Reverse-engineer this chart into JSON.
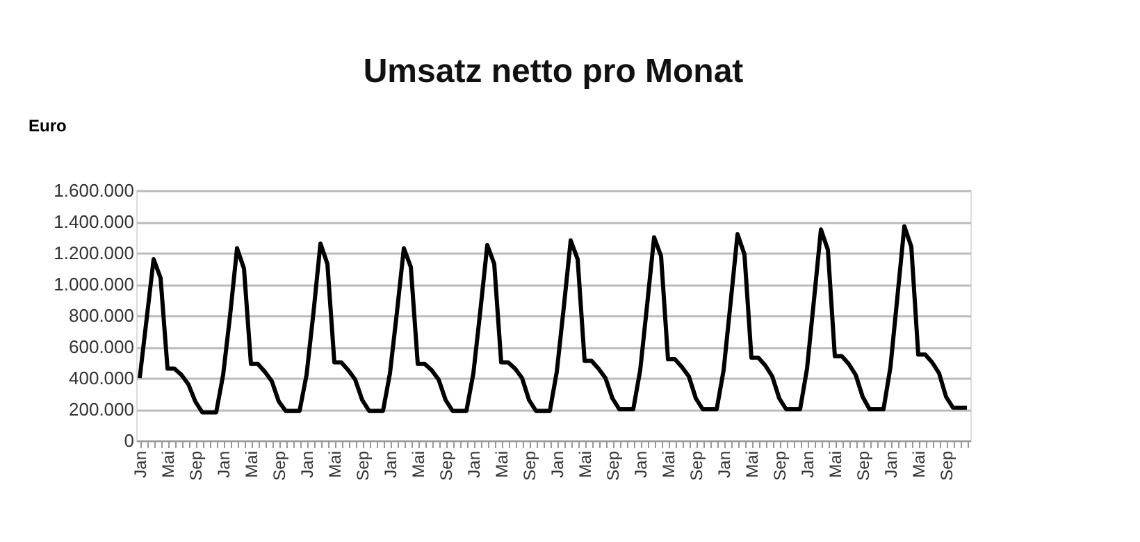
{
  "chart_data": {
    "type": "line",
    "title": "Umsatz netto pro Monat",
    "ylabel": "Euro",
    "categories": [
      "Jan",
      null,
      null,
      null,
      "Mai",
      null,
      null,
      null,
      "Sep",
      null,
      null,
      null,
      "Jan",
      null,
      null,
      null,
      "Mai",
      null,
      null,
      null,
      "Sep",
      null,
      null,
      null,
      "Jan",
      null,
      null,
      null,
      "Mai",
      null,
      null,
      null,
      "Sep",
      null,
      null,
      null,
      "Jan",
      null,
      null,
      null,
      "Mai",
      null,
      null,
      null,
      "Sep",
      null,
      null,
      null,
      "Jan",
      null,
      null,
      null,
      "Mai",
      null,
      null,
      null,
      "Sep",
      null,
      null,
      null,
      "Jan",
      null,
      null,
      null,
      "Mai",
      null,
      null,
      null,
      "Sep",
      null,
      null,
      null,
      "Jan",
      null,
      null,
      null,
      "Mai",
      null,
      null,
      null,
      "Sep",
      null,
      null,
      null,
      "Jan",
      null,
      null,
      null,
      "Mai",
      null,
      null,
      null,
      "Sep",
      null,
      null,
      null,
      "Jan",
      null,
      null,
      null,
      "Mai",
      null,
      null,
      null,
      "Sep",
      null,
      null,
      null,
      "Jan",
      null,
      null,
      null,
      "Mai",
      null,
      null,
      null,
      "Sep",
      null,
      null,
      null
    ],
    "series": [
      {
        "color": "#000000",
        "values": [
          400000,
          780000,
          1160000,
          1040000,
          460000,
          460000,
          420000,
          360000,
          250000,
          180000,
          180000,
          180000,
          420000,
          800000,
          1230000,
          1100000,
          490000,
          490000,
          440000,
          380000,
          250000,
          190000,
          190000,
          190000,
          420000,
          820000,
          1260000,
          1130000,
          500000,
          500000,
          450000,
          390000,
          260000,
          190000,
          190000,
          190000,
          430000,
          820000,
          1230000,
          1110000,
          490000,
          490000,
          450000,
          390000,
          260000,
          190000,
          190000,
          190000,
          430000,
          830000,
          1250000,
          1130000,
          500000,
          500000,
          460000,
          400000,
          260000,
          190000,
          190000,
          190000,
          440000,
          850000,
          1280000,
          1160000,
          510000,
          510000,
          460000,
          400000,
          270000,
          200000,
          200000,
          200000,
          450000,
          870000,
          1300000,
          1180000,
          520000,
          520000,
          470000,
          410000,
          270000,
          200000,
          200000,
          200000,
          450000,
          880000,
          1320000,
          1190000,
          530000,
          530000,
          480000,
          410000,
          270000,
          200000,
          200000,
          200000,
          460000,
          900000,
          1350000,
          1220000,
          540000,
          540000,
          490000,
          420000,
          280000,
          200000,
          200000,
          200000,
          470000,
          920000,
          1370000,
          1240000,
          550000,
          550000,
          500000,
          430000,
          280000,
          210000,
          210000,
          210000
        ]
      }
    ],
    "ylim": [
      0,
      1600000
    ],
    "yticks": [
      0,
      {
        "value": 200000,
        "label": "200.000"
      },
      {
        "value": 400000,
        "label": "400.000"
      },
      {
        "value": 600000,
        "label": "600.000"
      },
      {
        "value": 800000,
        "label": "800.000"
      },
      {
        "value": 1000000,
        "label": "1.000.000"
      },
      {
        "value": 1200000,
        "label": "1.200.000"
      },
      {
        "value": 1400000,
        "label": "1.400.000"
      },
      {
        "value": 1600000,
        "label": "1.600.000"
      }
    ],
    "grid": "y",
    "marker": "none",
    "line_style": "solid"
  }
}
